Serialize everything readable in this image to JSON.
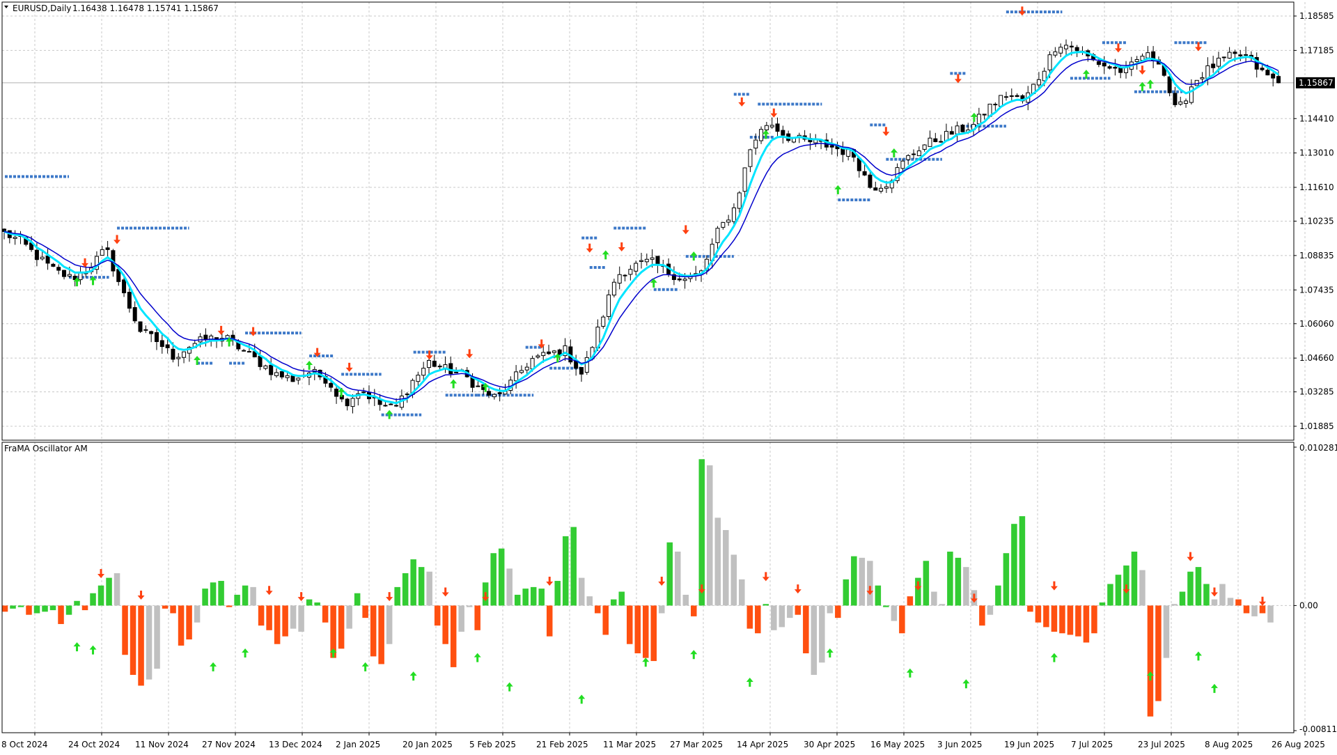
{
  "chart_title": {
    "symbol": "EURUSD,Daily",
    "ohlc": "1.16438 1.16478 1.15741 1.15867"
  },
  "colors": {
    "grid": "#c8c8c8",
    "bull_body": "#ffffff",
    "bear_body": "#000000",
    "frama_fast": "#00e5ff",
    "frama_slow": "#0000cc",
    "level_dots": "#3c78c8",
    "arrow_up": "#22dd22",
    "arrow_down": "#ff4010",
    "osc_green": "#33cc33",
    "osc_red": "#ff5010",
    "osc_gray": "#c0c0c0",
    "price_tag_bg": "#000000",
    "price_tag_fg": "#ffffff"
  },
  "current_price_label": "1.15867",
  "chart_data": [
    {
      "type": "candlestick",
      "name": "EURUSD,Daily",
      "y_ticks": [
        "1.18585",
        "1.17185",
        "1.15867",
        "1.14410",
        "1.13010",
        "1.11610",
        "1.10235",
        "1.08835",
        "1.07435",
        "1.06060",
        "1.04660",
        "1.03285",
        "1.01885"
      ],
      "ylim": [
        1.0125,
        1.1915
      ],
      "current_price": 1.15867,
      "x_labels": [
        "8 Oct 2024",
        "24 Oct 2024",
        "11 Nov 2024",
        "27 Nov 2024",
        "13 Dec 2024",
        "2 Jan 2025",
        "20 Jan 2025",
        "5 Feb 2025",
        "21 Feb 2025",
        "11 Mar 2025",
        "27 Mar 2025",
        "14 Apr 2025",
        "30 Apr 2025",
        "16 May 2025",
        "3 Jun 2025",
        "19 Jun 2025",
        "7 Jul 2025",
        "23 Jul 2025",
        "8 Aug 2025",
        "26 Aug 2025"
      ],
      "close_path": [
        [
          0,
          1.0975
        ],
        [
          5,
          1.094
        ],
        [
          10,
          1.0875
        ],
        [
          15,
          1.082
        ],
        [
          20,
          1.079
        ],
        [
          25,
          1.0835
        ],
        [
          30,
          1.091
        ],
        [
          35,
          1.073
        ],
        [
          40,
          1.058
        ],
        [
          45,
          1.0535
        ],
        [
          50,
          1.047
        ],
        [
          55,
          1.052
        ],
        [
          60,
          1.0545
        ],
        [
          65,
          1.055
        ],
        [
          70,
          1.05
        ],
        [
          75,
          1.045
        ],
        [
          80,
          1.04
        ],
        [
          85,
          1.038
        ],
        [
          90,
          1.041
        ],
        [
          95,
          1.038
        ],
        [
          100,
          1.028
        ],
        [
          105,
          1.034
        ],
        [
          110,
          1.028
        ],
        [
          115,
          1.026
        ],
        [
          120,
          1.037
        ],
        [
          125,
          1.045
        ],
        [
          130,
          1.042
        ],
        [
          135,
          1.04
        ],
        [
          140,
          1.034
        ],
        [
          145,
          1.03
        ],
        [
          150,
          1.038
        ],
        [
          155,
          1.046
        ],
        [
          160,
          1.048
        ],
        [
          165,
          1.05
        ],
        [
          170,
          1.04
        ],
        [
          175,
          1.059
        ],
        [
          180,
          1.08
        ],
        [
          185,
          1.084
        ],
        [
          190,
          1.086
        ],
        [
          195,
          1.082
        ],
        [
          200,
          1.0785
        ],
        [
          205,
          1.081
        ],
        [
          210,
          1.098
        ],
        [
          215,
          1.108
        ],
        [
          220,
          1.134
        ],
        [
          225,
          1.143
        ],
        [
          230,
          1.137
        ],
        [
          235,
          1.135
        ],
        [
          240,
          1.134
        ],
        [
          245,
          1.132
        ],
        [
          250,
          1.129
        ],
        [
          255,
          1.116
        ],
        [
          260,
          1.118
        ],
        [
          265,
          1.127
        ],
        [
          270,
          1.133
        ],
        [
          275,
          1.136
        ],
        [
          280,
          1.139
        ],
        [
          285,
          1.141
        ],
        [
          290,
          1.149
        ],
        [
          295,
          1.154
        ],
        [
          300,
          1.151
        ],
        [
          305,
          1.162
        ],
        [
          310,
          1.175
        ],
        [
          315,
          1.173
        ],
        [
          320,
          1.168
        ],
        [
          325,
          1.165
        ],
        [
          330,
          1.163
        ],
        [
          335,
          1.17
        ],
        [
          340,
          1.168
        ],
        [
          345,
          1.146
        ],
        [
          350,
          1.159
        ],
        [
          355,
          1.165
        ],
        [
          360,
          1.169
        ],
        [
          365,
          1.17
        ],
        [
          370,
          1.163
        ],
        [
          375,
          1.1587
        ]
      ],
      "level_segments": [
        {
          "price": 1.1205,
          "x0": 0,
          "x1": 8
        },
        {
          "price": 1.0995,
          "x0": 14,
          "x1": 23
        },
        {
          "price": 1.0795,
          "x0": 8,
          "x1": 13
        },
        {
          "price": 1.0568,
          "x0": 30,
          "x1": 37
        },
        {
          "price": 1.0445,
          "x0": 24,
          "x1": 26
        },
        {
          "price": 1.0445,
          "x0": 28,
          "x1": 30
        },
        {
          "price": 1.0475,
          "x0": 38,
          "x1": 41
        },
        {
          "price": 1.04,
          "x0": 42,
          "x1": 47
        },
        {
          "price": 1.0235,
          "x0": 47,
          "x1": 52
        },
        {
          "price": 1.049,
          "x0": 51,
          "x1": 55
        },
        {
          "price": 1.0315,
          "x0": 55,
          "x1": 59
        },
        {
          "price": 1.0315,
          "x0": 59,
          "x1": 66
        },
        {
          "price": 1.0425,
          "x0": 68,
          "x1": 72
        },
        {
          "price": 1.051,
          "x0": 65,
          "x1": 67
        },
        {
          "price": 1.0955,
          "x0": 72,
          "x1": 74
        },
        {
          "price": 1.0995,
          "x0": 76,
          "x1": 80
        },
        {
          "price": 1.0835,
          "x0": 73,
          "x1": 75
        },
        {
          "price": 1.0745,
          "x0": 81,
          "x1": 84
        },
        {
          "price": 1.088,
          "x0": 85,
          "x1": 91
        },
        {
          "price": 1.154,
          "x0": 91,
          "x1": 93
        },
        {
          "price": 1.15,
          "x0": 94,
          "x1": 102
        },
        {
          "price": 1.1365,
          "x0": 93,
          "x1": 96
        },
        {
          "price": 1.111,
          "x0": 104,
          "x1": 108
        },
        {
          "price": 1.1415,
          "x0": 108,
          "x1": 110
        },
        {
          "price": 1.1275,
          "x0": 110,
          "x1": 117
        },
        {
          "price": 1.1625,
          "x0": 118,
          "x1": 120
        },
        {
          "price": 1.141,
          "x0": 120,
          "x1": 125
        },
        {
          "price": 1.1875,
          "x0": 125,
          "x1": 132
        },
        {
          "price": 1.175,
          "x0": 137,
          "x1": 140
        },
        {
          "price": 1.1605,
          "x0": 133,
          "x1": 138
        },
        {
          "price": 1.175,
          "x0": 146,
          "x1": 150
        },
        {
          "price": 1.155,
          "x0": 141,
          "x1": 147
        }
      ],
      "up_arrows": [
        [
          9,
          1.0775
        ],
        [
          11,
          1.078
        ],
        [
          24,
          1.0455
        ],
        [
          28,
          1.053
        ],
        [
          38,
          1.0435
        ],
        [
          42,
          1.0325
        ],
        [
          48,
          1.0235
        ],
        [
          56,
          1.036
        ],
        [
          60,
          1.0345
        ],
        [
          69,
          1.0465
        ],
        [
          75,
          1.0885
        ],
        [
          81,
          1.077
        ],
        [
          86,
          1.088
        ],
        [
          95,
          1.1375
        ],
        [
          104,
          1.115
        ],
        [
          111,
          1.13
        ],
        [
          121,
          1.1445
        ],
        [
          135,
          1.162
        ],
        [
          142,
          1.157
        ],
        [
          143,
          1.158
        ]
      ],
      "down_arrows": [
        [
          10,
          1.0855
        ],
        [
          14,
          1.095
        ],
        [
          27,
          1.058
        ],
        [
          31,
          1.0575
        ],
        [
          39,
          1.049
        ],
        [
          43,
          1.043
        ],
        [
          53,
          1.048
        ],
        [
          58,
          1.0485
        ],
        [
          67,
          1.0525
        ],
        [
          73,
          1.0915
        ],
        [
          77,
          1.092
        ],
        [
          85,
          1.099
        ],
        [
          92,
          1.151
        ],
        [
          96,
          1.1465
        ],
        [
          110,
          1.139
        ],
        [
          119,
          1.1605
        ],
        [
          127,
          1.188
        ],
        [
          139,
          1.173
        ],
        [
          142,
          1.164
        ],
        [
          149,
          1.1735
        ]
      ]
    },
    {
      "type": "bar",
      "name": "FraMA Oscillator AM",
      "y_ticks": [
        "0.010281",
        "0.00",
        "-0.008118"
      ],
      "ylim": [
        -0.008118,
        0.010281
      ],
      "values": [
        -0.0004,
        -0.0002,
        -0.0001,
        -0.0006,
        -0.0005,
        -0.0004,
        -0.0003,
        -0.0012,
        -0.0006,
        0.0003,
        -0.0003,
        0.0008,
        0.0013,
        0.0018,
        0.0021,
        -0.0032,
        -0.0045,
        -0.0052,
        -0.0048,
        -0.0041,
        -0.0002,
        -0.0005,
        -0.0026,
        -0.0022,
        -0.0011,
        0.0011,
        0.0015,
        0.0016,
        -0.0001,
        0.0007,
        0.0013,
        0.0012,
        -0.0013,
        -0.0016,
        -0.0025,
        -0.002,
        -0.0015,
        -0.0017,
        0.0004,
        0.0002,
        -0.0011,
        -0.0034,
        -0.0028,
        -0.0015,
        0.0008,
        -0.0008,
        -0.0033,
        -0.0038,
        -0.0025,
        0.0012,
        0.0021,
        0.003,
        0.0025,
        0.0022,
        -0.0013,
        -0.0025,
        -0.004,
        -0.0017,
        -0.0001,
        -0.0016,
        0.0015,
        0.0034,
        0.0037,
        0.0024,
        0.0007,
        0.0011,
        0.0012,
        0.0011,
        -0.002,
        0.0016,
        0.0045,
        0.0051,
        0.0018,
        0.0006,
        -0.0005,
        -0.0019,
        0.0004,
        0.0009,
        -0.0025,
        -0.0031,
        -0.0034,
        -0.0036,
        -0.0005,
        0.0041,
        0.0035,
        0.0007,
        -0.0007,
        0.0095,
        0.0091,
        0.0057,
        0.0049,
        0.0033,
        0.0017,
        -0.0015,
        -0.0018,
        0.0001,
        -0.0016,
        -0.0014,
        -0.0008,
        -0.0006,
        -0.0031,
        -0.0045,
        -0.0037,
        -0.0005,
        -0.0008,
        0.0017,
        0.0032,
        0.0031,
        0.0029,
        0.0013,
        -0.0001,
        -0.001,
        -0.0018,
        0.0006,
        0.0018,
        0.0029,
        0.0009,
        0.0001,
        0.0035,
        0.0031,
        0.0025,
        0.001,
        -0.0013,
        -0.0006,
        0.0013,
        0.0034,
        0.0053,
        0.0058,
        -0.0004,
        -0.0011,
        -0.0014,
        -0.0017,
        -0.0018,
        -0.0019,
        -0.002,
        -0.0024,
        -0.0018,
        0.0002,
        0.0014,
        0.002,
        0.0026,
        0.0035,
        0.0023,
        -0.0072,
        -0.0062,
        -0.0034,
        0.0001,
        0.0009,
        0.0022,
        0.0025,
        0.0014,
        0.0004,
        0.0014,
        0.0005,
        0.0004,
        -0.0005,
        -0.0007,
        -0.0005,
        -0.0011
      ],
      "colors": [
        "r",
        "g",
        "g",
        "r",
        "g",
        "g",
        "g",
        "r",
        "g",
        "g",
        "r",
        "g",
        "g",
        "g",
        "s",
        "r",
        "r",
        "r",
        "s",
        "s",
        "r",
        "r",
        "r",
        "r",
        "s",
        "g",
        "g",
        "g",
        "r",
        "g",
        "g",
        "s",
        "r",
        "r",
        "r",
        "r",
        "s",
        "s",
        "g",
        "g",
        "r",
        "r",
        "r",
        "s",
        "g",
        "r",
        "r",
        "r",
        "s",
        "g",
        "g",
        "g",
        "g",
        "s",
        "r",
        "r",
        "r",
        "s",
        "s",
        "r",
        "g",
        "g",
        "g",
        "s",
        "g",
        "g",
        "g",
        "g",
        "r",
        "g",
        "g",
        "g",
        "s",
        "s",
        "r",
        "r",
        "g",
        "g",
        "r",
        "r",
        "r",
        "r",
        "s",
        "g",
        "s",
        "s",
        "r",
        "g",
        "s",
        "s",
        "s",
        "s",
        "s",
        "r",
        "r",
        "g",
        "s",
        "s",
        "s",
        "r",
        "r",
        "s",
        "s",
        "s",
        "r",
        "g",
        "g",
        "s",
        "s",
        "g",
        "g",
        "s",
        "r",
        "r",
        "g",
        "g",
        "s",
        "s",
        "g",
        "g",
        "s",
        "s",
        "r",
        "s",
        "g",
        "g",
        "g",
        "g",
        "r",
        "r",
        "r",
        "r",
        "r",
        "r",
        "r",
        "r",
        "r",
        "g",
        "g",
        "g",
        "g",
        "g",
        "s",
        "r",
        "r",
        "s",
        "s",
        "g",
        "g",
        "g",
        "g",
        "s",
        "s",
        "s",
        "r",
        "r",
        "s",
        "r"
      ],
      "up_arrows": [
        [
          9,
          -0.0027
        ],
        [
          11,
          -0.0029
        ],
        [
          26,
          -0.004
        ],
        [
          30,
          -0.0031
        ],
        [
          41,
          -0.0031
        ],
        [
          45,
          -0.004
        ],
        [
          51,
          -0.0046
        ],
        [
          59,
          -0.0034
        ],
        [
          63,
          -0.0053
        ],
        [
          72,
          -0.0061
        ],
        [
          80,
          -0.0037
        ],
        [
          86,
          -0.0032
        ],
        [
          93,
          -0.005
        ],
        [
          103,
          -0.0031
        ],
        [
          113,
          -0.0044
        ],
        [
          120,
          -0.0051
        ],
        [
          131,
          -0.0034
        ],
        [
          143,
          -0.0046
        ],
        [
          149,
          -0.0033
        ],
        [
          151,
          -0.0054
        ]
      ],
      "down_arrows": [
        [
          12,
          0.0021
        ],
        [
          17,
          0.0007
        ],
        [
          33,
          0.001
        ],
        [
          37,
          0.0006
        ],
        [
          48,
          0.0006
        ],
        [
          55,
          0.0009
        ],
        [
          60,
          0.0006
        ],
        [
          68,
          0.0016
        ],
        [
          82,
          0.0016
        ],
        [
          87,
          0.0011
        ],
        [
          95,
          0.0019
        ],
        [
          99,
          0.0011
        ],
        [
          108,
          0.001
        ],
        [
          114,
          0.0013
        ],
        [
          121,
          0.0005
        ],
        [
          131,
          0.0013
        ],
        [
          140,
          0.0011
        ],
        [
          148,
          0.0032
        ],
        [
          151,
          0.0009
        ],
        [
          157,
          0.0003
        ]
      ]
    }
  ]
}
